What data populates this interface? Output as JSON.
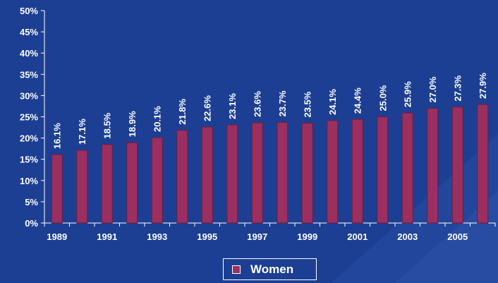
{
  "chart_data": {
    "type": "bar",
    "x": [
      1989,
      1990,
      1991,
      1992,
      1993,
      1994,
      1995,
      1996,
      1997,
      1998,
      1999,
      2000,
      2001,
      2002,
      2003,
      2004,
      2005,
      2006
    ],
    "x_tick_labels": [
      "1989",
      "1991",
      "1993",
      "1995",
      "1997",
      "1999",
      "2001",
      "2003",
      "2005"
    ],
    "series": [
      {
        "name": "Women",
        "values": [
          16.1,
          17.1,
          18.5,
          18.9,
          20.1,
          21.8,
          22.6,
          23.1,
          23.6,
          23.7,
          23.5,
          24.1,
          24.4,
          25.0,
          25.9,
          27.0,
          27.3,
          27.9
        ],
        "labels": [
          "16.1%",
          "17.1%",
          "18.5%",
          "18.9%",
          "20.1%",
          "21.8%",
          "22.6%",
          "23.1%",
          "23.6%",
          "23.7%",
          "23.5%",
          "24.1%",
          "24.4%",
          "25.0%",
          "25.9%",
          "27.0%",
          "27.3%",
          "27.9%"
        ]
      }
    ],
    "y_tick_labels": [
      "0%",
      "5%",
      "10%",
      "15%",
      "20%",
      "25%",
      "30%",
      "35%",
      "40%",
      "45%",
      "50%"
    ],
    "ylim": [
      0,
      50
    ],
    "grid": false,
    "legend_position": "bottom-center",
    "colors": {
      "background": "#1c3f94",
      "bar": "#9b2f5f",
      "bar_edge": "#6a1e40",
      "text": "#ffffff",
      "axis": "#ffffff"
    }
  }
}
